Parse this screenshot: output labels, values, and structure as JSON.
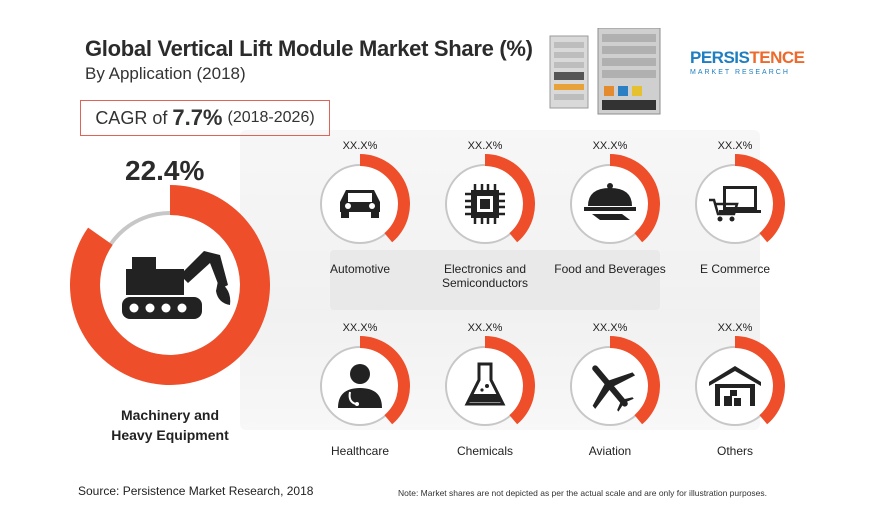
{
  "title": "Global Vertical Lift Module Market Share (%)",
  "subtitle": "By Application (2018)",
  "cagr": {
    "prefix": "CAGR of",
    "value": "7.7%",
    "period": "(2018-2026)"
  },
  "logo": {
    "name_part1": "PERSIS",
    "name_part2": "TENCE",
    "tagline": "MARKET RESEARCH"
  },
  "colors": {
    "accent": "#ee4e2a",
    "ring_gray": "#c7c7c7",
    "icon": "#222222"
  },
  "chart_data": {
    "type": "pie",
    "highlight": {
      "label": "Machinery and Heavy Equipment",
      "value": 22.4,
      "value_label": "22.4%",
      "icon": "excavator-icon"
    },
    "segments": [
      {
        "label": "Automotive",
        "value_label": "XX.X%",
        "icon": "car-icon"
      },
      {
        "label": "Electronics and Semiconductors",
        "value_label": "XX.X%",
        "icon": "chip-icon"
      },
      {
        "label": "Food and Beverages",
        "value_label": "XX.X%",
        "icon": "cloche-icon"
      },
      {
        "label": "E Commerce",
        "value_label": "XX.X%",
        "icon": "laptop-cart-icon"
      },
      {
        "label": "Healthcare",
        "value_label": "XX.X%",
        "icon": "doctor-icon"
      },
      {
        "label": "Chemicals",
        "value_label": "XX.X%",
        "icon": "flask-icon"
      },
      {
        "label": "Aviation",
        "value_label": "XX.X%",
        "icon": "airplane-icon"
      },
      {
        "label": "Others",
        "value_label": "XX.X%",
        "icon": "warehouse-icon"
      }
    ]
  },
  "source": "Source: Persistence Market Research, 2018",
  "note": "Note: Market shares are not depicted as per the actual scale and are only for illustration purposes."
}
